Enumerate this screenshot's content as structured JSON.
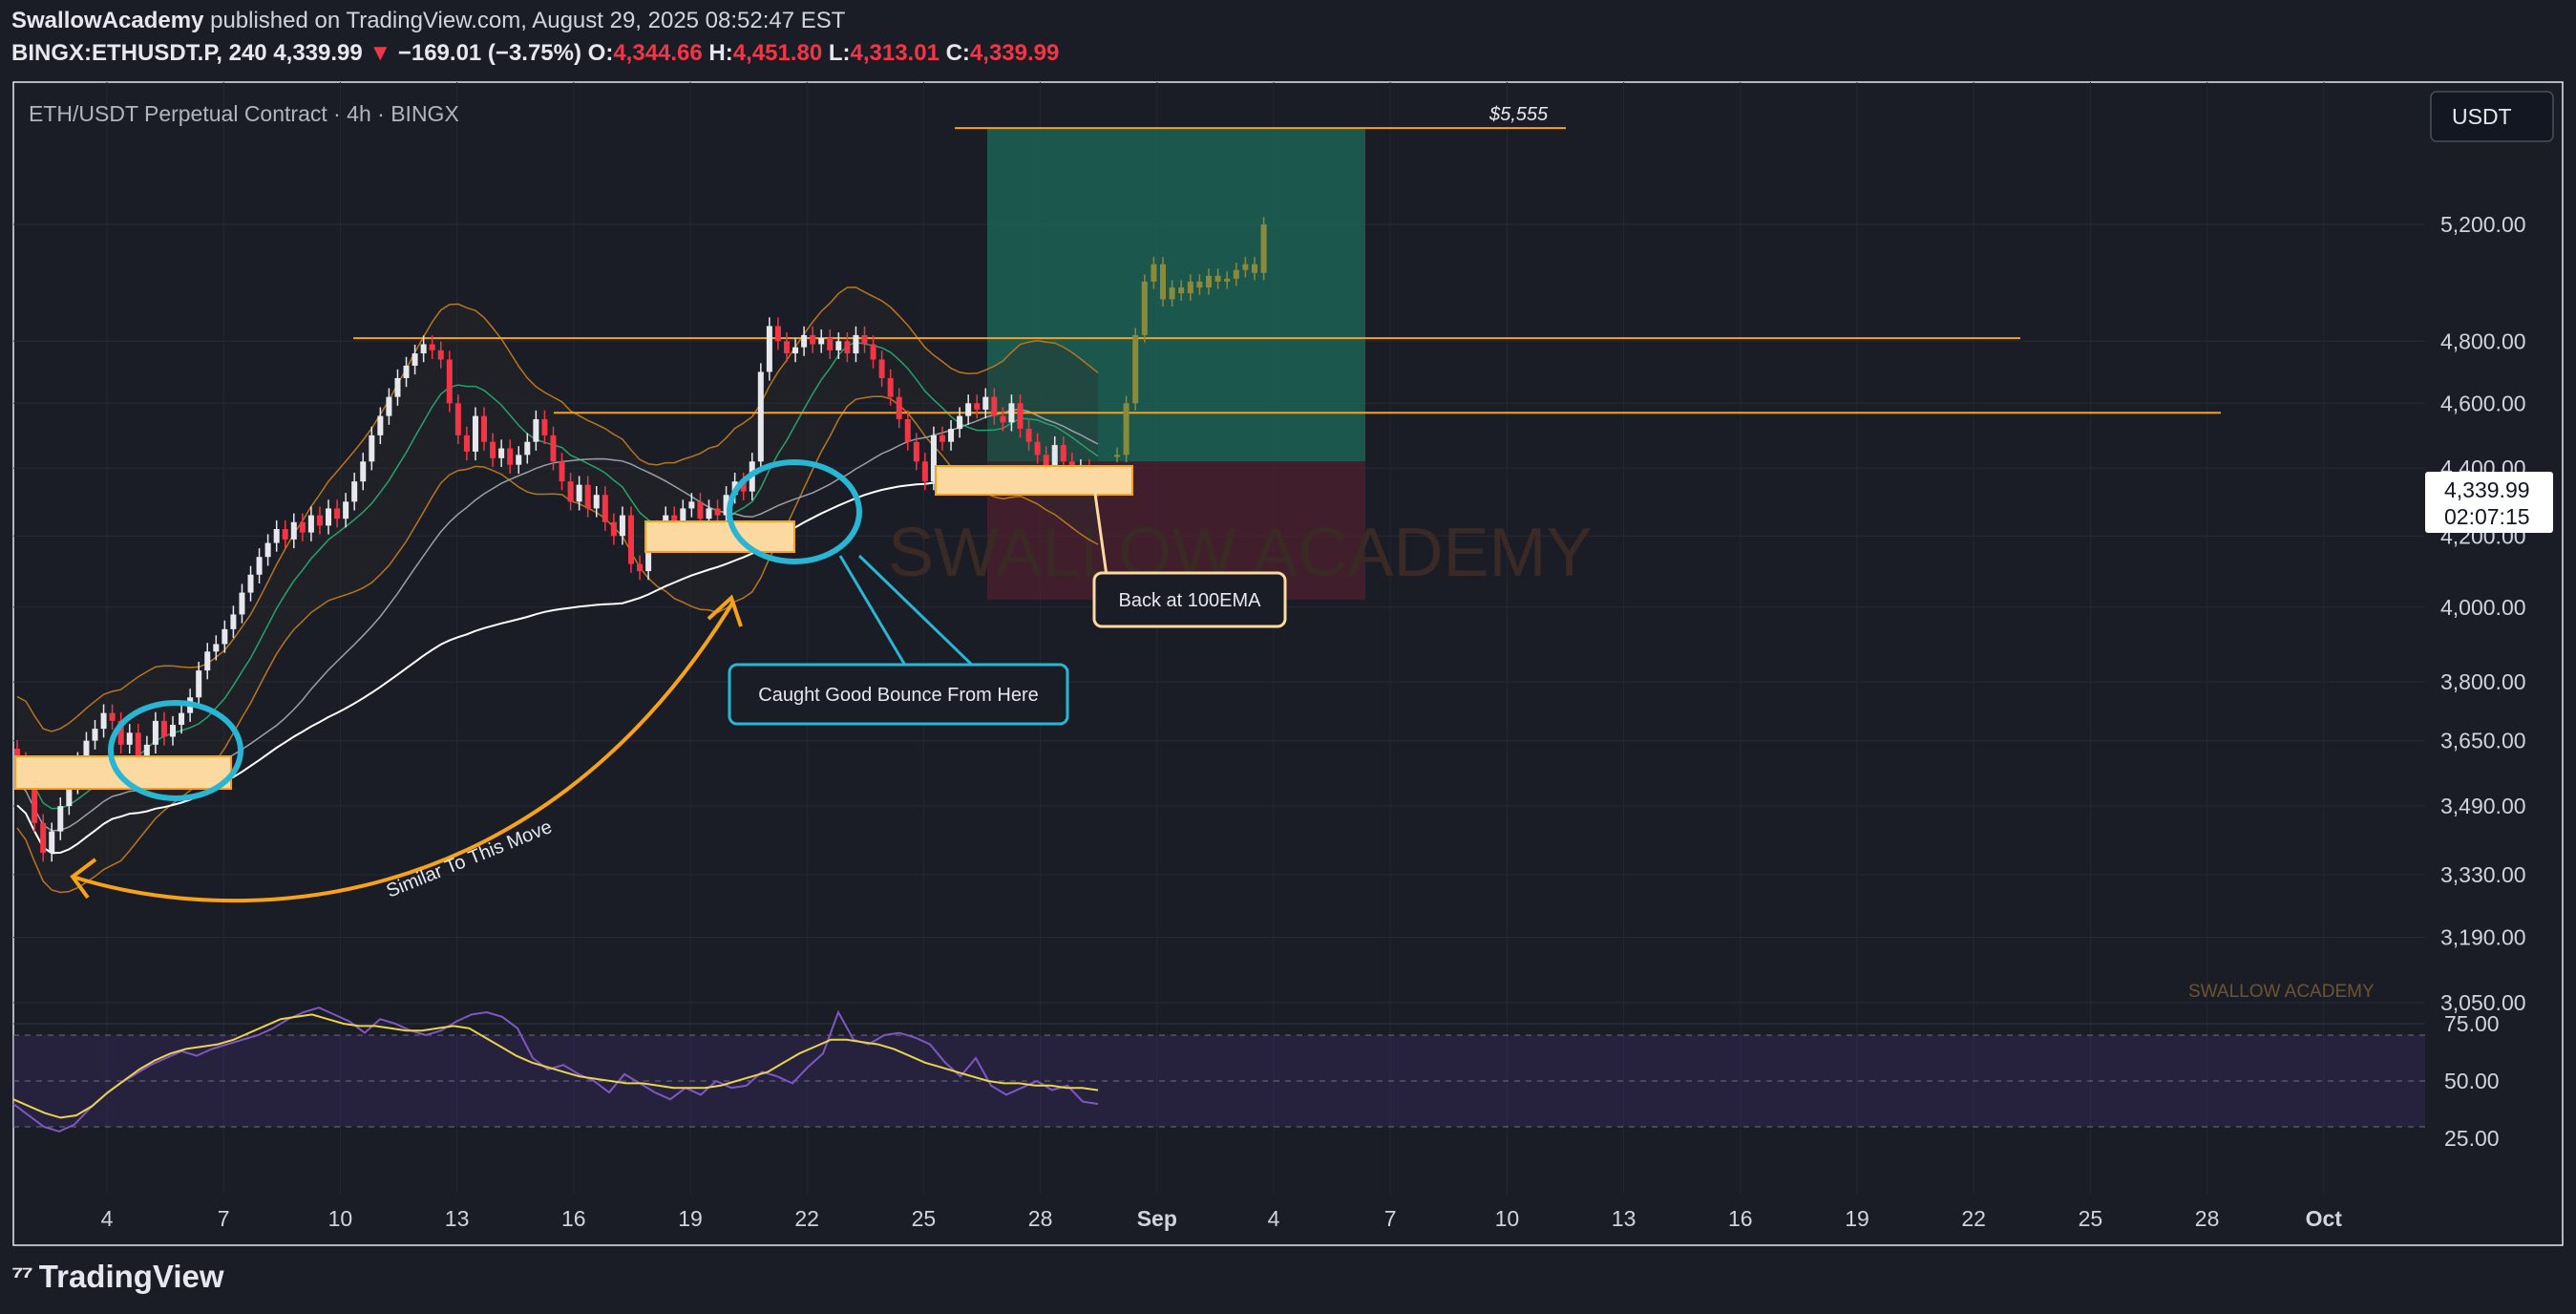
{
  "header": {
    "author": "SwallowAcademy",
    "published_text": "published on TradingView.com, August 29, 2025 08:52:47 EST",
    "symbol": "BINGX:ETHUSDT.P, 240",
    "last": "4,339.99",
    "change_arrow": "▼",
    "change": "−169.01 (−3.75%)",
    "o_label": "O:",
    "o": "4,344.66",
    "h_label": "H:",
    "h": "4,451.80",
    "l_label": "L:",
    "l": "4,313.01",
    "c_label": "C:",
    "c": "4,339.99"
  },
  "chart_title": "ETH/USDT Perpetual Contract · 4h · BINGX",
  "currency_button": "USDT",
  "price_badge": {
    "price": "4,339.99",
    "countdown": "02:07:15"
  },
  "branding": "TradingView",
  "colors": {
    "bg": "#1b1d26",
    "up": "#e6e8ee",
    "down": "#f23645",
    "orange": "#f7a21b",
    "cyan": "#29b6d4",
    "rsi": "#7e57c2",
    "ema": "#ffffff",
    "mid": "#26a269"
  },
  "chart_data": {
    "type": "candlestick",
    "price_axis": {
      "ticks": [
        5200,
        4800,
        4600,
        4400,
        4200,
        4000,
        3800,
        3650,
        3490,
        3330,
        3190,
        3050
      ],
      "tick_labels": [
        "5,200.00",
        "4,800.00",
        "4,600.00",
        "4,400.00",
        "4,200.00",
        "4,000.00",
        "3,800.00",
        "3,650.00",
        "3,490.00",
        "3,330.00",
        "3,190.00",
        "3,050.00"
      ],
      "scale": "log"
    },
    "time_axis": {
      "labels": [
        "4",
        "7",
        "10",
        "13",
        "16",
        "19",
        "22",
        "25",
        "28",
        "Sep",
        "4",
        "7",
        "10",
        "13",
        "16",
        "19",
        "22",
        "25",
        "28",
        "Oct"
      ]
    },
    "rsi_axis": {
      "ticks": [
        75,
        50,
        25
      ],
      "tick_labels": [
        "75.00",
        "50.00",
        "25.00"
      ]
    },
    "candles_closes": [
      3600,
      3560,
      3450,
      3380,
      3430,
      3490,
      3540,
      3600,
      3650,
      3680,
      3720,
      3700,
      3640,
      3670,
      3610,
      3640,
      3700,
      3660,
      3690,
      3720,
      3760,
      3830,
      3880,
      3900,
      3940,
      3980,
      4040,
      4090,
      4140,
      4180,
      4220,
      4190,
      4240,
      4210,
      4260,
      4230,
      4280,
      4250,
      4300,
      4360,
      4420,
      4500,
      4560,
      4620,
      4680,
      4720,
      4760,
      4790,
      4770,
      4740,
      4600,
      4500,
      4450,
      4560,
      4480,
      4430,
      4460,
      4410,
      4440,
      4480,
      4550,
      4500,
      4420,
      4360,
      4300,
      4350,
      4280,
      4320,
      4240,
      4200,
      4260,
      4120,
      4100,
      4180,
      4220,
      4260,
      4240,
      4280,
      4300,
      4250,
      4280,
      4260,
      4320,
      4360,
      4330,
      4420,
      4700,
      4850,
      4800,
      4760,
      4780,
      4820,
      4790,
      4810,
      4770,
      4800,
      4760,
      4820,
      4790,
      4740,
      4680,
      4620,
      4550,
      4480,
      4420,
      4360,
      4500,
      4480,
      4520,
      4560,
      4600,
      4580,
      4620,
      4560,
      4540,
      4600,
      4520,
      4480,
      4440,
      4400,
      4470,
      4420,
      4380,
      4400,
      4350,
      4339.99
    ],
    "projection": [
      4440,
      4600,
      4820,
      5000,
      5060,
      4940,
      4980,
      4960,
      5000,
      4980,
      5020,
      5000,
      5010,
      5040,
      5060,
      5030,
      5200
    ],
    "levels": [
      {
        "price": 4810,
        "label": ""
      },
      {
        "price": 4570,
        "label": ""
      },
      {
        "price": 5555,
        "label": "$5,555"
      }
    ],
    "position": {
      "entry": 4420,
      "target": 5555,
      "stop": 4020
    },
    "rsi": [
      40,
      35,
      30,
      28,
      31,
      38,
      44,
      49,
      53,
      57,
      60,
      63,
      61,
      64,
      66,
      68,
      70,
      73,
      77,
      80,
      82,
      79,
      76,
      71,
      77,
      75,
      72,
      70,
      72,
      76,
      79,
      80,
      78,
      73,
      60,
      55,
      57,
      53,
      50,
      45,
      53,
      49,
      45,
      42,
      47,
      44,
      50,
      47,
      48,
      54,
      52,
      49,
      56,
      62,
      80,
      68,
      66,
      70,
      71,
      69,
      66,
      58,
      52,
      60,
      48,
      44,
      47,
      50,
      46,
      48,
      41,
      40
    ],
    "rsi_signal": [
      42,
      39,
      36,
      34,
      35,
      39,
      45,
      50,
      55,
      59,
      62,
      64,
      65,
      66,
      68,
      71,
      74,
      77,
      78,
      79,
      77,
      75,
      74,
      74,
      73,
      72,
      72,
      73,
      74,
      73,
      69,
      65,
      61,
      58,
      56,
      54,
      52,
      51,
      50,
      49,
      49,
      48,
      47,
      47,
      47,
      48,
      50,
      52,
      54,
      58,
      62,
      65,
      68,
      68,
      67,
      66,
      64,
      61,
      58,
      56,
      54,
      52,
      50,
      49,
      49,
      48,
      48,
      47,
      47,
      46
    ],
    "annotations": [
      "Back at 100EMA",
      "Caught Good Bounce From Here",
      "Similar To This Move"
    ],
    "watermark": "SWALLOW ACADEMY"
  }
}
